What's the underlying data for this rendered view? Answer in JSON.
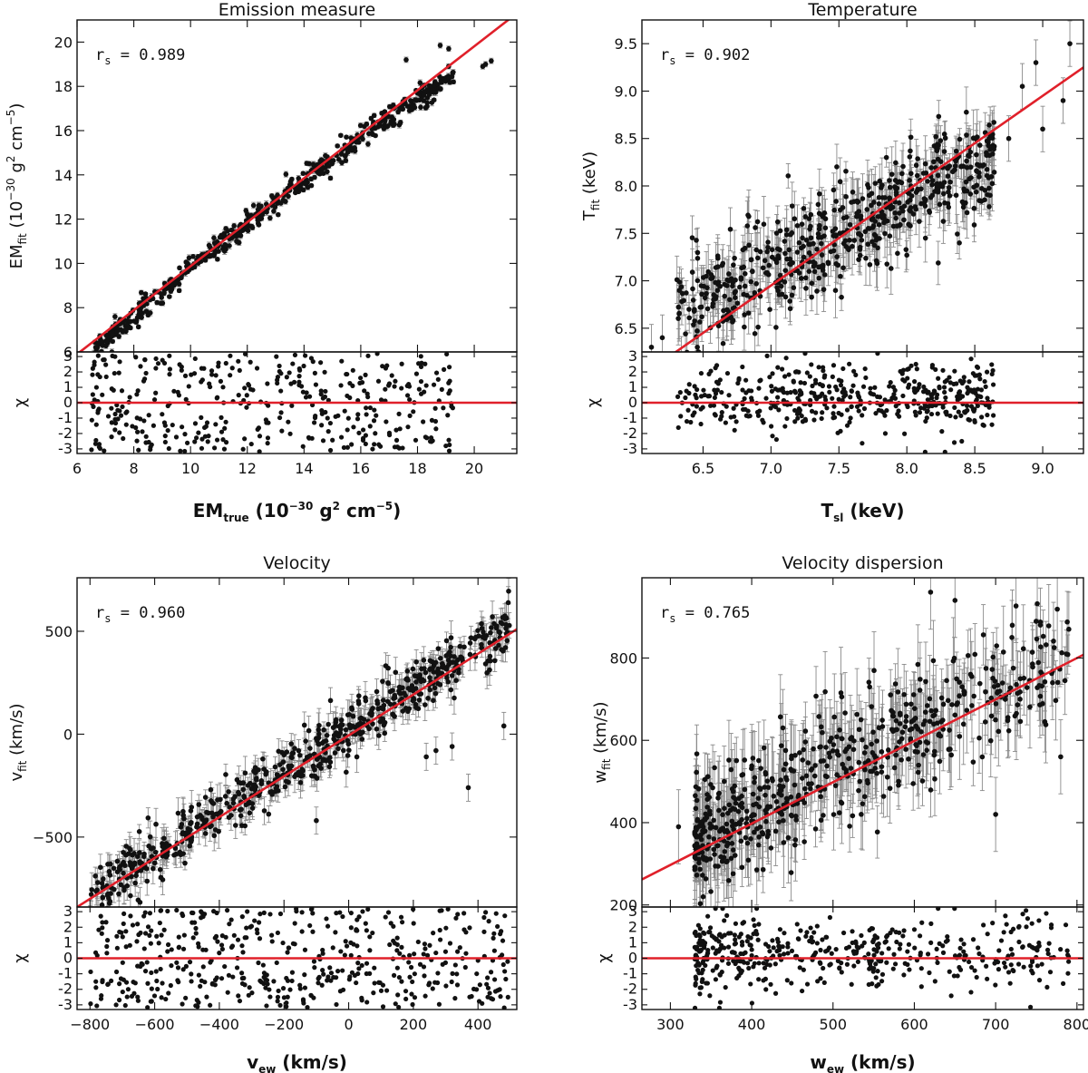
{
  "colors": {
    "fit_line": "#e0202a",
    "points": "#111111",
    "error_bars": "#8a8a8a",
    "axes": "#111111"
  },
  "chart_data": [
    {
      "id": "em",
      "type": "scatter",
      "title": "Emission measure",
      "stat_label": "r",
      "stat_sub": "s",
      "stat_eq": " = ",
      "stat_value": "0.989",
      "xlabel": {
        "main": "EM",
        "sub": "true",
        "rest": " (10",
        "exp": "−30",
        "unit": " g",
        "exp2": "2",
        "unit2": " cm",
        "exp3": "−5",
        "close": ")"
      },
      "ylabel": {
        "main": "EM",
        "sub": "fit",
        "rest": " (10",
        "exp": "−30",
        "unit": " g",
        "exp2": "2",
        "unit2": " cm",
        "exp3": "−5",
        "close": ")"
      },
      "resid_label": "χ",
      "xlim": [
        6,
        21.5
      ],
      "ylim": [
        6,
        21
      ],
      "resid_lim": [
        -3.3,
        3.3
      ],
      "xticks": [
        "6",
        "8",
        "10",
        "12",
        "14",
        "16",
        "18",
        "20"
      ],
      "xtick_values": [
        6,
        8,
        10,
        12,
        14,
        16,
        18,
        20
      ],
      "yticks": [
        "6",
        "8",
        "10",
        "12",
        "14",
        "16",
        "18",
        "20"
      ],
      "ytick_values": [
        6,
        8,
        10,
        12,
        14,
        16,
        18,
        20
      ],
      "rticks": [
        "-3",
        "-2",
        "-1",
        "0",
        "1",
        "2",
        "3"
      ],
      "fit_line": {
        "x": [
          6,
          21.5
        ],
        "y": [
          5.9,
          21.3
        ]
      },
      "sample": {
        "n": 520,
        "xmin": 6.5,
        "xmax": 19.3,
        "skew": 1.15,
        "slope": 0.985,
        "intercept": 0.0,
        "scatter": 0.28,
        "err": 0.1,
        "curve": -0.012,
        "curve_center": 13,
        "extra": [
          [
            20.3,
            18.9
          ],
          [
            20.6,
            19.15
          ],
          [
            20.4,
            19.0
          ],
          [
            18.8,
            19.85
          ],
          [
            19.1,
            19.7
          ],
          [
            17.6,
            19.2
          ]
        ]
      }
    },
    {
      "id": "temp",
      "type": "scatter",
      "title": "Temperature",
      "stat_label": "r",
      "stat_sub": "s",
      "stat_eq": " = ",
      "stat_value": "0.902",
      "xlabel": {
        "main": "T",
        "sub": "sl",
        "rest": " (keV)"
      },
      "ylabel": {
        "main": "T",
        "sub": "fit",
        "rest": " (keV)"
      },
      "resid_label": "χ",
      "xlim": [
        6.05,
        9.3
      ],
      "ylim": [
        6.25,
        9.75
      ],
      "resid_lim": [
        -3.3,
        3.3
      ],
      "xticks": [
        "6.5",
        "7.0",
        "7.5",
        "8.0",
        "8.5",
        "9.0"
      ],
      "xtick_values": [
        6.5,
        7.0,
        7.5,
        8.0,
        8.5,
        9.0
      ],
      "yticks": [
        "6.5",
        "7.0",
        "7.5",
        "8.0",
        "8.5",
        "9.0",
        "9.5"
      ],
      "ytick_values": [
        6.5,
        7.0,
        7.5,
        8.0,
        8.5,
        9.0,
        9.5
      ],
      "rticks": [
        "-3",
        "-2",
        "-1",
        "0",
        "1",
        "2",
        "3"
      ],
      "fit_line": {
        "x": [
          6.25,
          9.3
        ],
        "y": [
          6.2,
          9.25
        ]
      },
      "sample": {
        "n": 600,
        "xmin": 6.3,
        "xmax": 8.65,
        "skew": 0.9,
        "slope": 0.7,
        "intercept": 2.25,
        "scatter": 0.28,
        "err": 0.2,
        "curve": 0,
        "curve_center": 7.5,
        "extra": [
          [
            8.95,
            9.3
          ],
          [
            9.2,
            9.5
          ],
          [
            8.85,
            9.05
          ],
          [
            9.0,
            8.6
          ],
          [
            9.15,
            8.9
          ],
          [
            8.75,
            8.5
          ],
          [
            6.12,
            6.3
          ],
          [
            6.2,
            6.4
          ]
        ]
      }
    },
    {
      "id": "vel",
      "type": "scatter",
      "title": "Velocity",
      "stat_label": "r",
      "stat_sub": "s",
      "stat_eq": " = ",
      "stat_value": "0.960",
      "xlabel": {
        "main": "v",
        "sub": "ew",
        "rest": " (km/s)"
      },
      "ylabel": {
        "main": "v",
        "sub": "fit",
        "rest": " (km/s)"
      },
      "resid_label": "χ",
      "xlim": [
        -840,
        520
      ],
      "ylim": [
        -840,
        760
      ],
      "resid_lim": [
        -3.3,
        3.3
      ],
      "xticks": [
        "−800",
        "−600",
        "−400",
        "−200",
        "0",
        "200",
        "400"
      ],
      "xtick_values": [
        -800,
        -600,
        -400,
        -200,
        0,
        200,
        400
      ],
      "yticks": [
        "−500",
        "0",
        "500"
      ],
      "ytick_values": [
        -500,
        0,
        500
      ],
      "rticks": [
        "-3",
        "-2",
        "-1",
        "0",
        "1",
        "2",
        "3"
      ],
      "fit_line": {
        "x": [
          -840,
          520
        ],
        "y": [
          -840,
          510
        ]
      },
      "sample": {
        "n": 640,
        "xmin": -800,
        "xmax": 500,
        "skew": 1.0,
        "slope": 1.0,
        "intercept": 20,
        "scatter": 65,
        "err": 55,
        "curve": 0,
        "curve_center": 0,
        "extra": [
          [
            270,
            -80
          ],
          [
            320,
            -60
          ],
          [
            370,
            -260
          ],
          [
            480,
            40
          ],
          [
            240,
            -110
          ],
          [
            -100,
            -420
          ]
        ]
      }
    },
    {
      "id": "disp",
      "type": "scatter",
      "title": "Velocity dispersion",
      "stat_label": "r",
      "stat_sub": "s",
      "stat_eq": " = ",
      "stat_value": "0.765",
      "xlabel": {
        "main": "w",
        "sub": "ew",
        "rest": " (km/s)"
      },
      "ylabel": {
        "main": "w",
        "sub": "fit",
        "rest": " (km/s)"
      },
      "resid_label": "χ",
      "xlim": [
        265,
        808
      ],
      "ylim": [
        195,
        995
      ],
      "resid_lim": [
        -3.3,
        3.3
      ],
      "xticks": [
        "300",
        "400",
        "500",
        "600",
        "700",
        "800"
      ],
      "xtick_values": [
        300,
        400,
        500,
        600,
        700,
        800
      ],
      "yticks": [
        "200",
        "400",
        "600",
        "800"
      ],
      "ytick_values": [
        200,
        400,
        600,
        800
      ],
      "rticks": [
        "-3",
        "-2",
        "-1",
        "0",
        "1",
        "2",
        "3"
      ],
      "fit_line": {
        "x": [
          265,
          808
        ],
        "y": [
          262,
          808
        ]
      },
      "sample": {
        "n": 620,
        "xmin": 330,
        "xmax": 790,
        "skew": 1.7,
        "slope": 0.98,
        "intercept": 35,
        "scatter": 75,
        "err": 75,
        "curve": 0,
        "curve_center": 500,
        "extra": [
          [
            720,
            850
          ],
          [
            755,
            880
          ],
          [
            790,
            870
          ],
          [
            780,
            560
          ],
          [
            620,
            960
          ],
          [
            650,
            940
          ],
          [
            310,
            390
          ],
          [
            700,
            420
          ],
          [
            730,
            700
          ],
          [
            770,
            740
          ]
        ]
      }
    }
  ]
}
